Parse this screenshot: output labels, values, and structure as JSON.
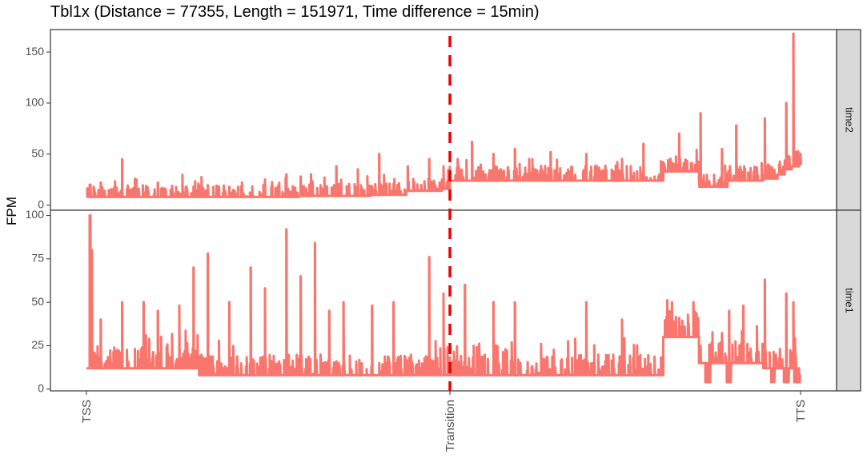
{
  "chart_data": {
    "type": "line",
    "title": "Tbl1x (Distance = 77355, Length = 151971, Time difference = 15min)",
    "ylabel": "FPM",
    "xlabel": "",
    "x_ticks": [
      "TSS",
      "Transition",
      "TTS"
    ],
    "transition_fraction": 0.509,
    "line_color": "#F8766D",
    "marker_color": "#EE0000",
    "grid": false,
    "panels": [
      {
        "strip_label": "time2",
        "ylim": [
          -5,
          172
        ],
        "y_ticks": [
          0,
          50,
          100,
          150
        ],
        "series": {
          "x": [
            0,
            0.02,
            0.05,
            0.1,
            0.15,
            0.2,
            0.25,
            0.3,
            0.35,
            0.4,
            0.45,
            0.5,
            0.508,
            0.509,
            0.55,
            0.6,
            0.65,
            0.7,
            0.75,
            0.8,
            0.81,
            0.85,
            0.86,
            0.9,
            0.95,
            0.97,
            0.98,
            0.99,
            1.0
          ],
          "y": [
            8,
            8,
            8,
            8,
            8,
            8,
            8,
            9,
            9,
            10,
            14,
            16,
            16,
            24,
            24,
            24,
            24,
            24,
            24,
            24,
            33,
            33,
            18,
            24,
            26,
            30,
            35,
            38,
            40
          ]
        },
        "spikes": [
          [
            0.005,
            20
          ],
          [
            0.02,
            22
          ],
          [
            0.05,
            45
          ],
          [
            0.07,
            25
          ],
          [
            0.1,
            22
          ],
          [
            0.15,
            18
          ],
          [
            0.2,
            18
          ],
          [
            0.25,
            25
          ],
          [
            0.28,
            30
          ],
          [
            0.3,
            28
          ],
          [
            0.35,
            38
          ],
          [
            0.38,
            35
          ],
          [
            0.41,
            50
          ],
          [
            0.45,
            38
          ],
          [
            0.48,
            45
          ],
          [
            0.5,
            38
          ],
          [
            0.52,
            45
          ],
          [
            0.54,
            62
          ],
          [
            0.57,
            50
          ],
          [
            0.6,
            55
          ],
          [
            0.62,
            45
          ],
          [
            0.65,
            52
          ],
          [
            0.7,
            50
          ],
          [
            0.75,
            45
          ],
          [
            0.78,
            60
          ],
          [
            0.83,
            70
          ],
          [
            0.86,
            90
          ],
          [
            0.89,
            55
          ],
          [
            0.91,
            78
          ],
          [
            0.95,
            85
          ],
          [
            0.98,
            100
          ],
          [
            0.99,
            168
          ],
          [
            1.0,
            50
          ]
        ]
      },
      {
        "strip_label": "time1",
        "ylim": [
          -1,
          103
        ],
        "y_ticks": [
          0,
          25,
          50,
          75,
          100
        ],
        "series": {
          "x": [
            0,
            0.05,
            0.1,
            0.15,
            0.16,
            0.2,
            0.25,
            0.3,
            0.35,
            0.4,
            0.45,
            0.5,
            0.55,
            0.6,
            0.65,
            0.7,
            0.75,
            0.8,
            0.81,
            0.85,
            0.86,
            0.9,
            0.95,
            1.0
          ],
          "y": [
            12,
            12,
            12,
            12,
            8,
            8,
            8,
            8,
            8,
            8,
            8,
            8,
            8,
            8,
            8,
            8,
            8,
            8,
            30,
            30,
            15,
            15,
            12,
            8
          ],
          "dips": [
            [
              0.87,
              4
            ],
            [
              0.9,
              4
            ],
            [
              0.96,
              4
            ],
            [
              0.98,
              4
            ],
            [
              0.995,
              4
            ]
          ]
        },
        "spikes": [
          [
            0.005,
            100
          ],
          [
            0.007,
            80
          ],
          [
            0.02,
            40
          ],
          [
            0.05,
            50
          ],
          [
            0.08,
            50
          ],
          [
            0.1,
            45
          ],
          [
            0.13,
            48
          ],
          [
            0.15,
            70
          ],
          [
            0.17,
            78
          ],
          [
            0.2,
            50
          ],
          [
            0.23,
            70
          ],
          [
            0.25,
            58
          ],
          [
            0.28,
            92
          ],
          [
            0.3,
            65
          ],
          [
            0.32,
            84
          ],
          [
            0.34,
            45
          ],
          [
            0.36,
            50
          ],
          [
            0.4,
            48
          ],
          [
            0.43,
            50
          ],
          [
            0.48,
            76
          ],
          [
            0.5,
            55
          ],
          [
            0.53,
            60
          ],
          [
            0.57,
            50
          ],
          [
            0.6,
            50
          ],
          [
            0.7,
            50
          ],
          [
            0.75,
            40
          ],
          [
            0.82,
            50
          ],
          [
            0.85,
            50
          ],
          [
            0.9,
            45
          ],
          [
            0.92,
            48
          ],
          [
            0.95,
            63
          ],
          [
            0.98,
            55
          ],
          [
            0.99,
            50
          ]
        ]
      }
    ]
  }
}
